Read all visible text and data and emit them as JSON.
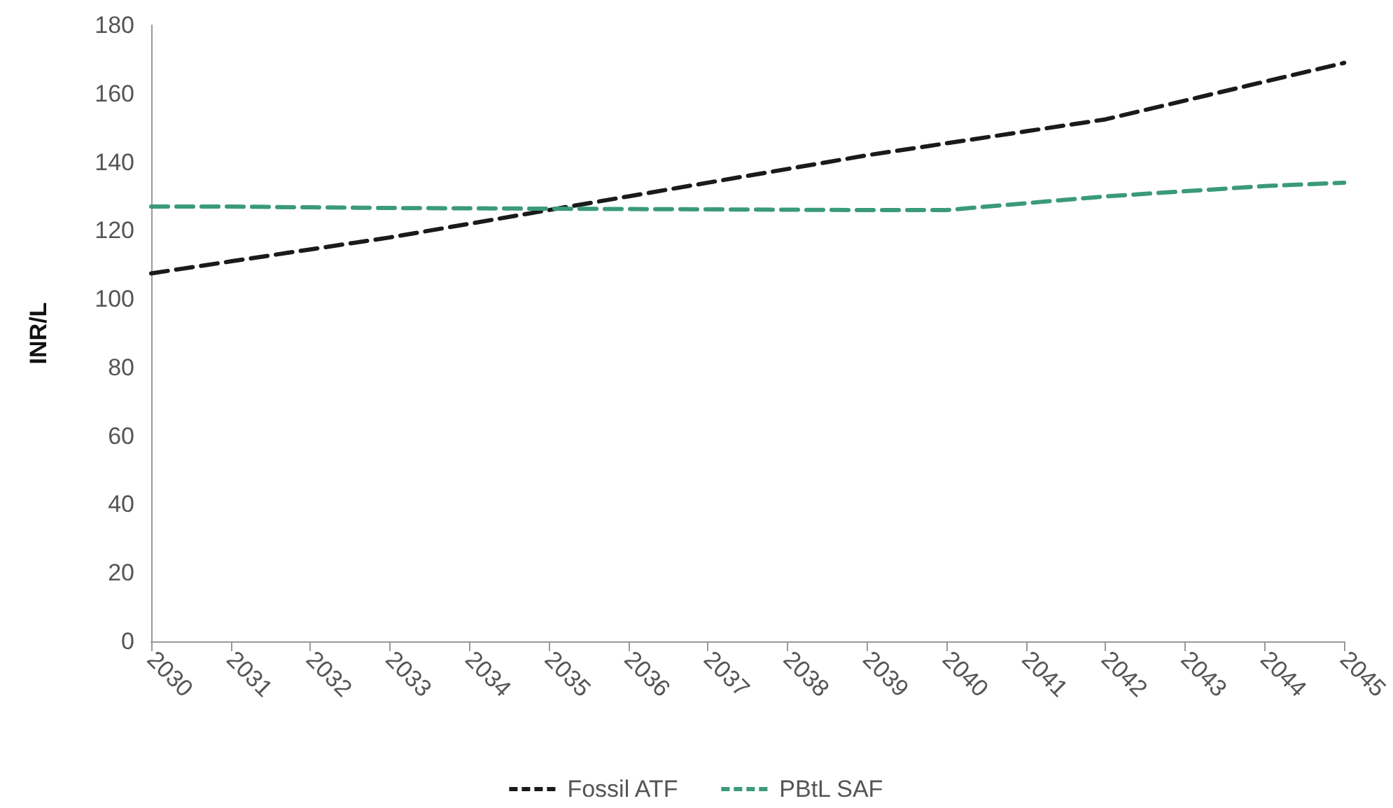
{
  "chart_data": {
    "type": "line",
    "ylabel": "INR/L",
    "categories": [
      "2030",
      "2031",
      "2032",
      "2033",
      "2034",
      "2035",
      "2036",
      "2037",
      "2038",
      "2039",
      "2040",
      "2041",
      "2042",
      "2043",
      "2044",
      "2045"
    ],
    "series": [
      {
        "name": "Fossil ATF",
        "color": "#1a1a1a",
        "values": [
          107.5,
          111,
          114.5,
          118,
          122,
          126,
          130,
          134,
          138,
          142,
          145.5,
          149,
          152.5,
          158,
          163.5,
          169
        ]
      },
      {
        "name": "PBtL SAF",
        "color": "#3a9a7a",
        "values": [
          127,
          127,
          126.8,
          126.6,
          126.5,
          126.4,
          126.3,
          126.2,
          126.1,
          126,
          126,
          128,
          130,
          131.5,
          133,
          134
        ]
      }
    ],
    "ylim": [
      0,
      180
    ],
    "yticks": [
      0,
      20,
      40,
      60,
      80,
      100,
      120,
      140,
      160,
      180
    ],
    "grid": false,
    "legend": "bottom",
    "marker": "none",
    "line_style": "dashed"
  }
}
